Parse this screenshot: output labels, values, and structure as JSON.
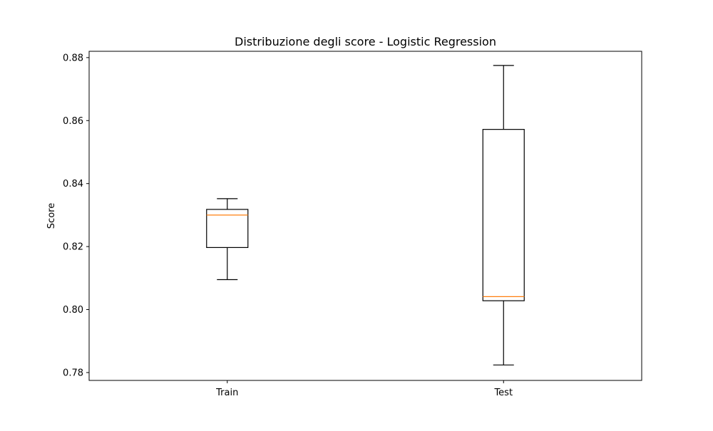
{
  "chart_data": {
    "type": "box",
    "title": "Distribuzione degli score - Logistic Regression",
    "xlabel": "",
    "ylabel": "Score",
    "ylim": [
      0.7775,
      0.882
    ],
    "yticks": [
      "0.78",
      "0.80",
      "0.82",
      "0.84",
      "0.86",
      "0.88"
    ],
    "categories": [
      "Train",
      "Test"
    ],
    "boxes": [
      {
        "category": "Train",
        "whisker_low": 0.8095,
        "q1": 0.8197,
        "median": 0.83,
        "q3": 0.8318,
        "whisker_high": 0.8352
      },
      {
        "category": "Test",
        "whisker_low": 0.7824,
        "q1": 0.8028,
        "median": 0.8041,
        "q3": 0.8572,
        "whisker_high": 0.8775
      }
    ],
    "grid": false,
    "colors": {
      "box": "#000000",
      "median": "#ff7f0e"
    }
  }
}
